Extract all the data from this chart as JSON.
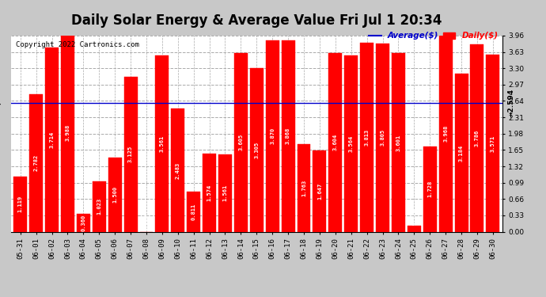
{
  "title": "Daily Solar Energy & Average Value Fri Jul 1 20:34",
  "copyright": "Copyright 2022 Cartronics.com",
  "legend_average": "Average($)",
  "legend_daily": "Daily($)",
  "average_value": 2.594,
  "categories": [
    "05-31",
    "06-01",
    "06-02",
    "06-03",
    "06-04",
    "06-05",
    "06-06",
    "06-07",
    "06-08",
    "06-09",
    "06-10",
    "06-11",
    "06-12",
    "06-13",
    "06-14",
    "06-15",
    "06-16",
    "06-17",
    "06-18",
    "06-19",
    "06-20",
    "06-21",
    "06-22",
    "06-23",
    "06-24",
    "06-25",
    "06-26",
    "06-27",
    "06-28",
    "06-29",
    "06-30"
  ],
  "values": [
    1.119,
    2.782,
    3.714,
    3.988,
    0.36,
    1.023,
    1.5,
    3.125,
    0.0,
    3.561,
    2.483,
    0.811,
    1.574,
    1.561,
    3.605,
    3.305,
    3.87,
    3.868,
    1.763,
    1.647,
    3.604,
    3.564,
    3.813,
    3.805,
    3.601,
    0.114,
    1.728,
    3.968,
    3.184,
    3.786,
    3.571
  ],
  "bar_color": "#ff0000",
  "avg_line_color": "#0000cc",
  "ylim": [
    0,
    3.96
  ],
  "yticks": [
    0.0,
    0.33,
    0.66,
    0.99,
    1.32,
    1.65,
    1.98,
    2.31,
    2.64,
    2.97,
    3.3,
    3.63,
    3.96
  ],
  "plot_bg_color": "#ffffff",
  "fig_bg_color": "#c8c8c8",
  "grid_color": "#aaaaaa",
  "title_fontsize": 12,
  "tick_fontsize": 6.5,
  "bar_value_fontsize": 5.0,
  "avg_label_fontsize": 6.5,
  "copyright_fontsize": 6.5,
  "legend_fontsize": 7.5
}
